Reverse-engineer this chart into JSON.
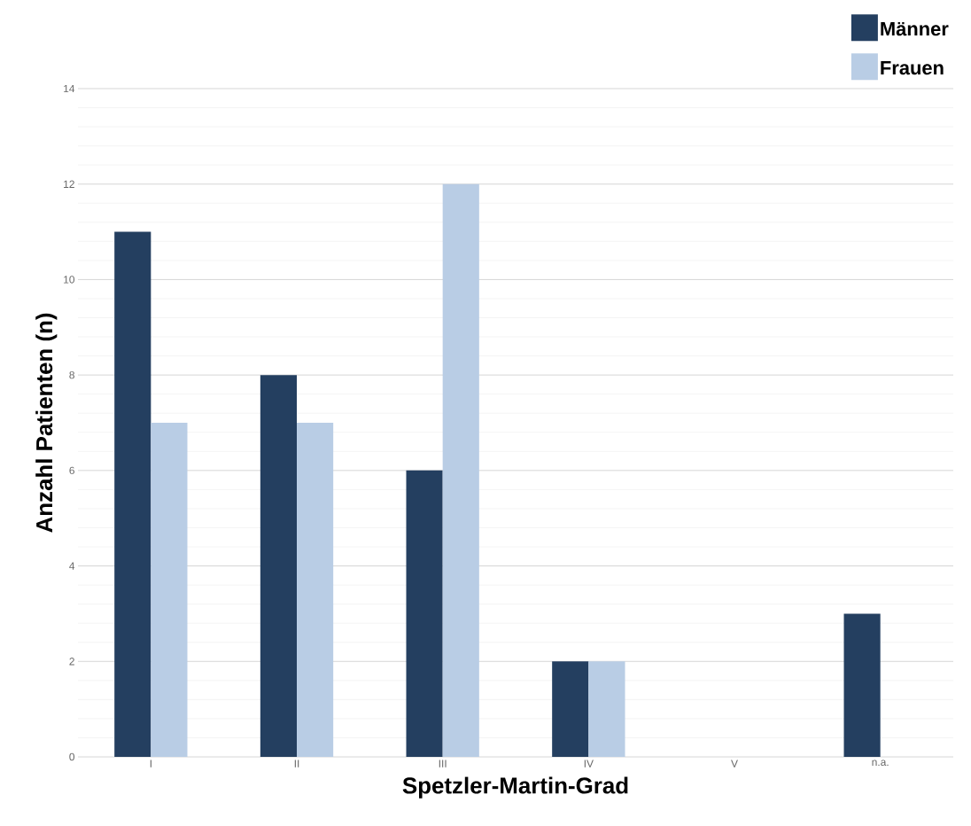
{
  "chart_data": {
    "type": "bar",
    "xlabel": "Spetzler-Martin-Grad",
    "ylabel": "Anzahl Patienten (n)",
    "categories": [
      "I",
      "II",
      "III",
      "IV",
      "V",
      "n.a."
    ],
    "series": [
      {
        "name": "Männer",
        "color": "#243f60",
        "values": [
          11,
          8,
          6,
          2,
          0,
          3
        ]
      },
      {
        "name": "Frauen",
        "color": "#b9cde5",
        "values": [
          7,
          7,
          12,
          2,
          0,
          0
        ]
      }
    ],
    "ylim": [
      0,
      14
    ],
    "yticks": [
      0,
      2,
      4,
      6,
      8,
      10,
      12,
      14
    ],
    "grid": "y",
    "legend": "top right"
  }
}
